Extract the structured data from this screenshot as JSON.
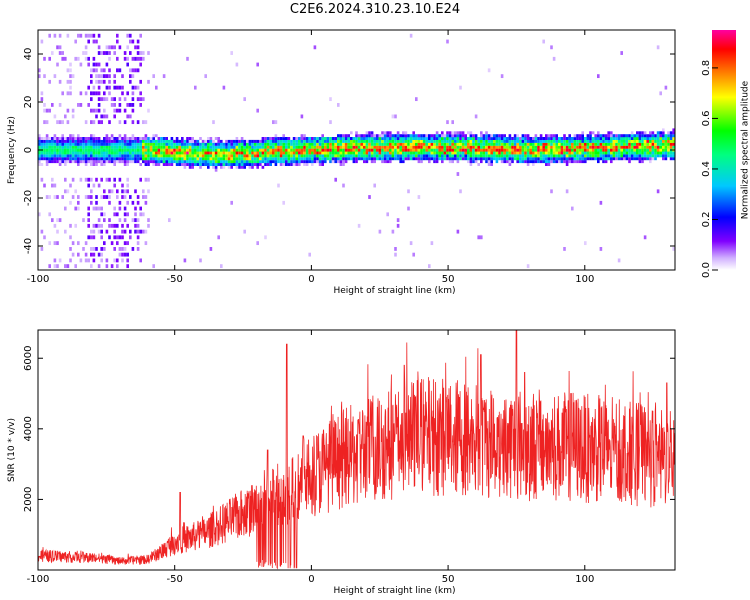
{
  "title": "C2E6.2024.310.23.10.E24",
  "chart_data": [
    {
      "type": "heatmap",
      "xlabel": "Height of straight line (km)",
      "ylabel": "Frequency (Hz)",
      "xlim": [
        -100,
        133
      ],
      "ylim": [
        -50,
        50
      ],
      "xticks": [
        -100,
        -50,
        0,
        50,
        100
      ],
      "yticks": [
        -40,
        -20,
        0,
        20,
        40
      ],
      "grid": false,
      "band": {
        "center_hz": [
          [
            -100,
            0
          ],
          [
            -60,
            0
          ],
          [
            -50,
            -1
          ],
          [
            -30,
            -2
          ],
          [
            -20,
            -1
          ],
          [
            0,
            0
          ],
          [
            20,
            1
          ],
          [
            50,
            1
          ],
          [
            80,
            0
          ],
          [
            110,
            1
          ],
          [
            133,
            2
          ]
        ],
        "half_width_hz": 6
      },
      "noise_region_km": [
        -100,
        -60
      ],
      "colorbar": {
        "label": "Normalized spectral amplitude",
        "range": [
          0,
          0.95
        ],
        "ticks": [
          0.0,
          0.2,
          0.4,
          0.6,
          0.8
        ],
        "colormap": [
          "#ffffff",
          "#c080ff",
          "#7f00ff",
          "#0000ff",
          "#00ffff",
          "#00ff00",
          "#ffff00",
          "#ff8000",
          "#ff0000",
          "#ff00ff"
        ]
      }
    },
    {
      "type": "line",
      "xlabel": "Height of straight line (km)",
      "ylabel": "SNR (10 * v/v)",
      "xlim": [
        -100,
        133
      ],
      "ylim": [
        0,
        6800
      ],
      "xticks": [
        -100,
        -50,
        0,
        50,
        100
      ],
      "yticks": [
        2000,
        4000,
        6000
      ],
      "grid": false,
      "color": "#ee2222",
      "envelope": [
        [
          -100,
          400
        ],
        [
          -80,
          350
        ],
        [
          -70,
          250
        ],
        [
          -60,
          300
        ],
        [
          -55,
          500
        ],
        [
          -50,
          800
        ],
        [
          -40,
          1000
        ],
        [
          -30,
          1400
        ],
        [
          -20,
          1800
        ],
        [
          -10,
          2200
        ],
        [
          0,
          2700
        ],
        [
          10,
          3100
        ],
        [
          20,
          3400
        ],
        [
          30,
          3600
        ],
        [
          40,
          3800
        ],
        [
          50,
          3800
        ],
        [
          70,
          3600
        ],
        [
          90,
          3500
        ],
        [
          110,
          3400
        ],
        [
          133,
          3100
        ]
      ],
      "spikes": [
        [
          -48,
          2200
        ],
        [
          -16,
          3400
        ],
        [
          -9,
          6400
        ],
        [
          -3,
          3800
        ],
        [
          34,
          5800
        ],
        [
          38,
          4900
        ],
        [
          62,
          6100
        ],
        [
          75,
          6800
        ],
        [
          78,
          5600
        ],
        [
          95,
          5000
        ],
        [
          130,
          5300
        ]
      ]
    }
  ]
}
